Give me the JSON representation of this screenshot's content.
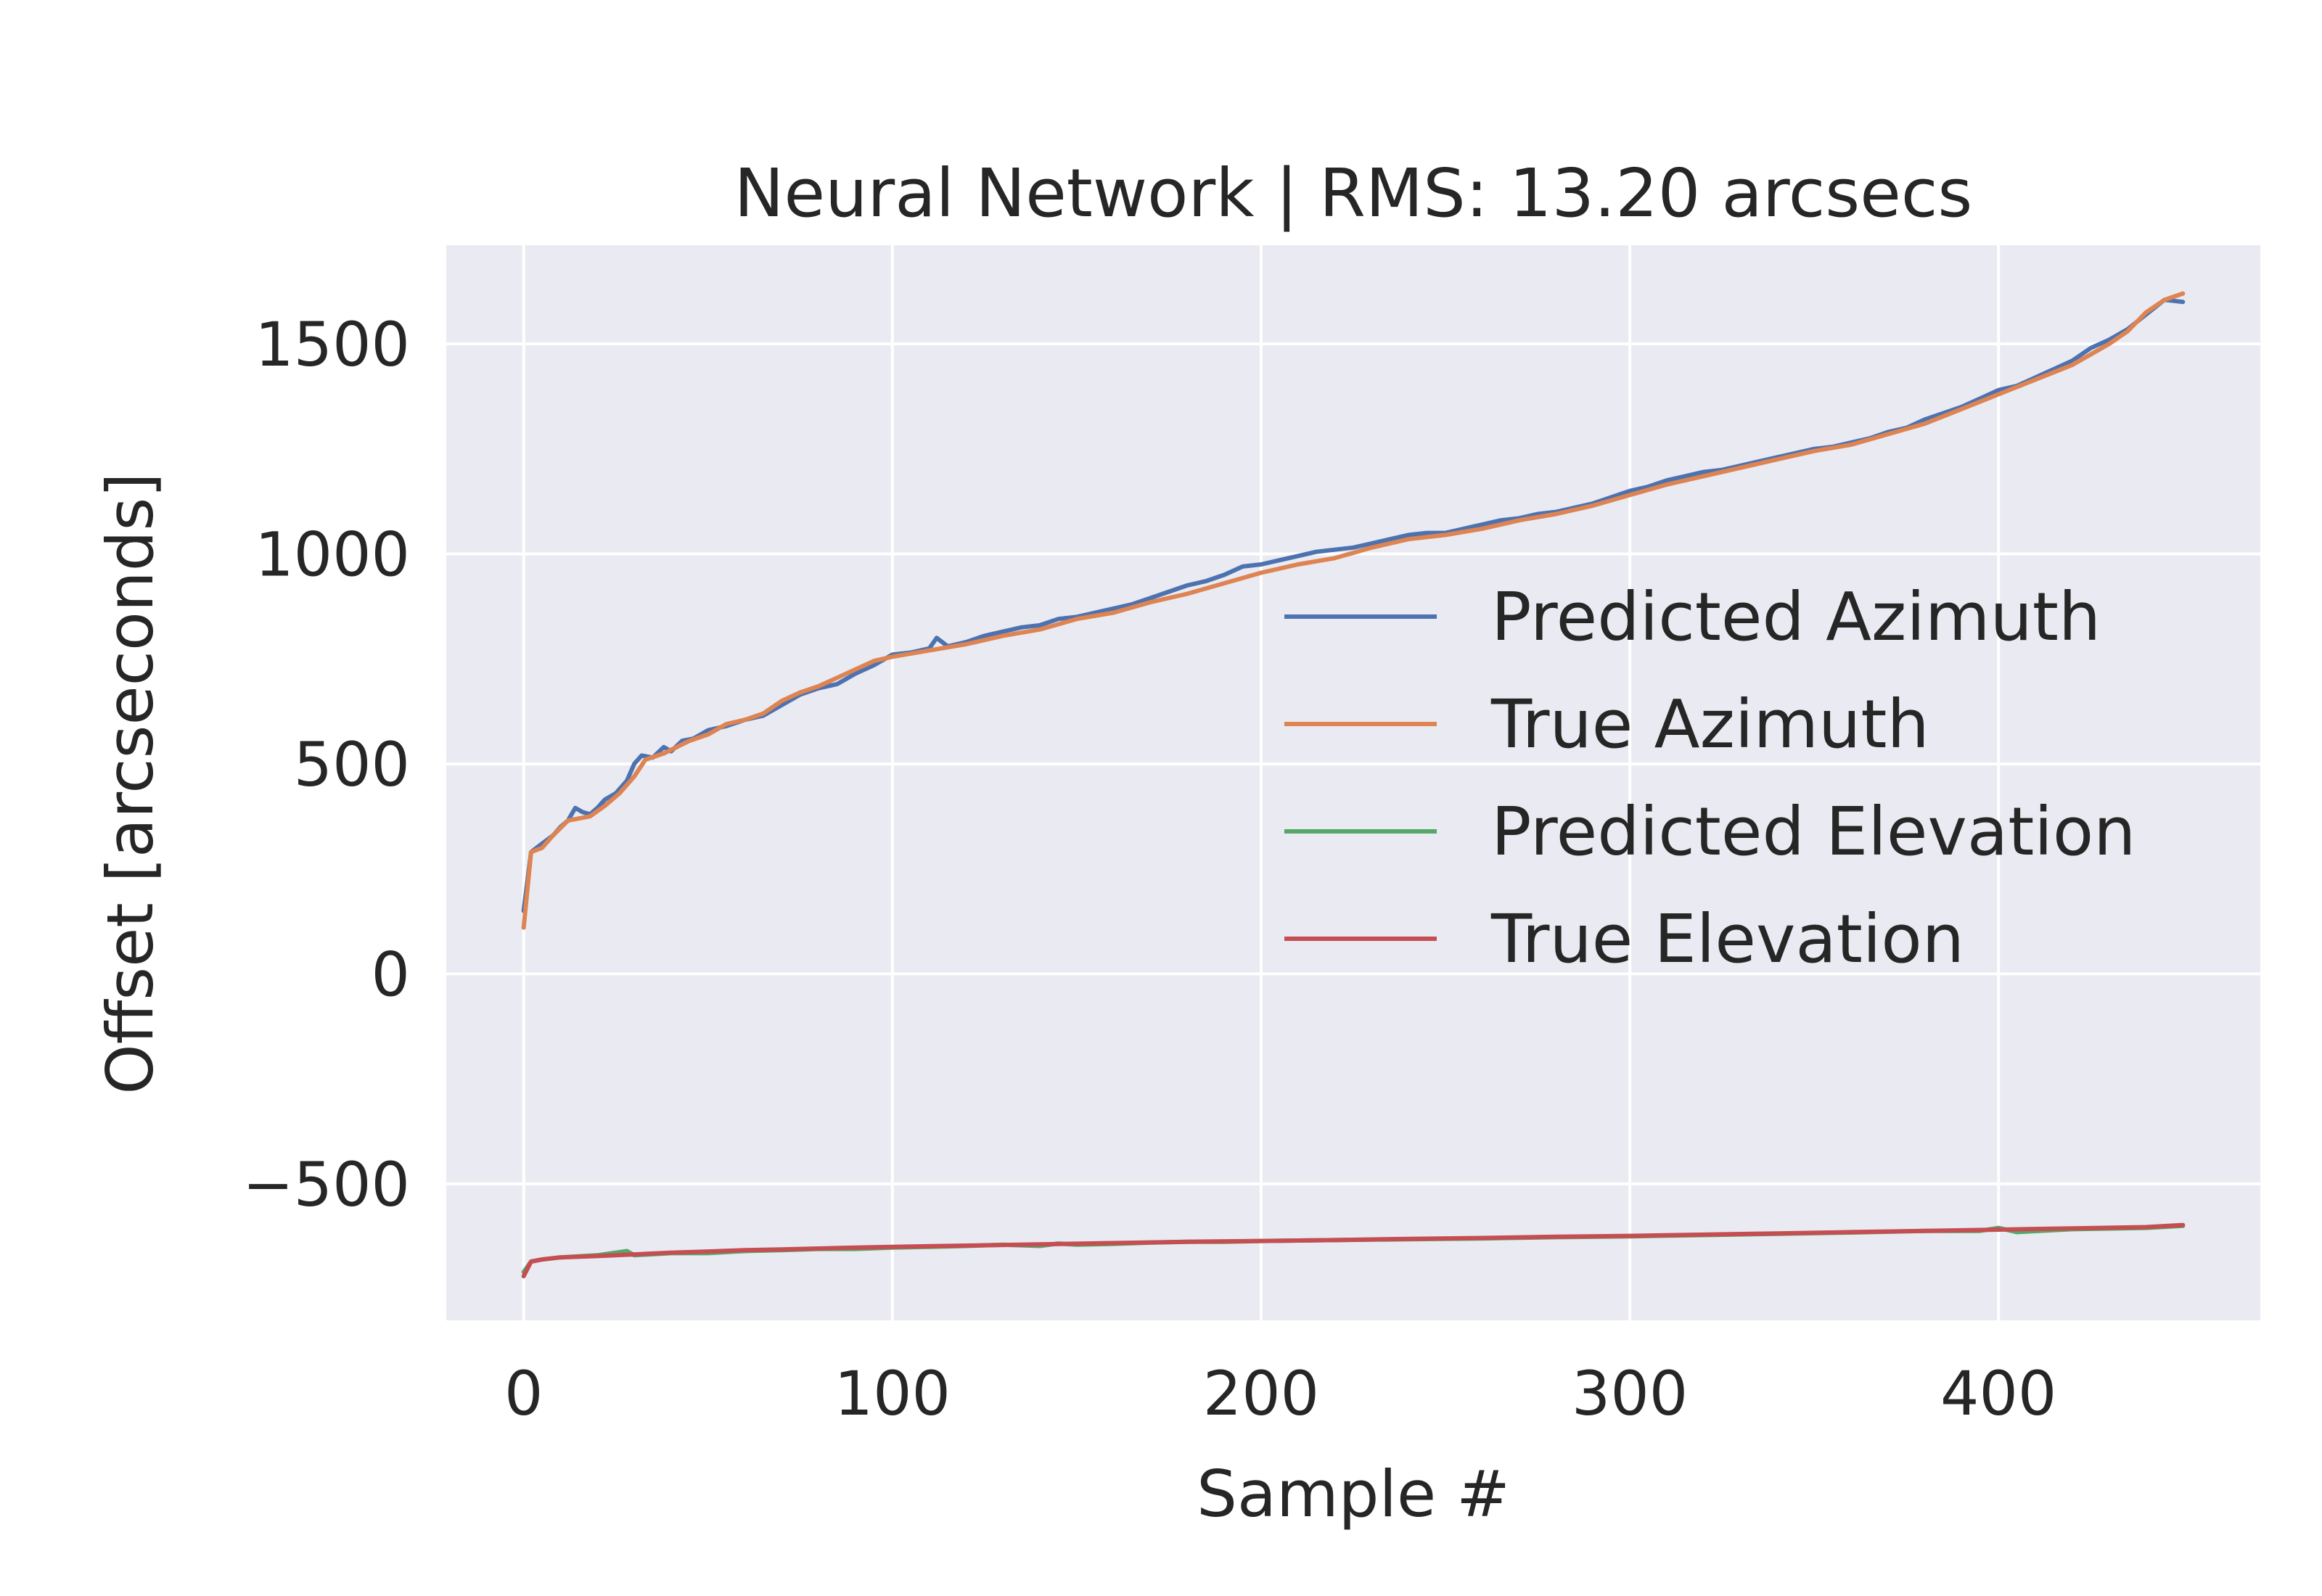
{
  "chart_data": {
    "type": "line",
    "title": "Neural Network | RMS: 13.20 arcsecs",
    "xlabel": "Sample #",
    "ylabel": "Offset [arcseconds]",
    "xlim": [
      -21,
      471
    ],
    "ylim": [
      -825,
      1735
    ],
    "xticks": [
      0,
      100,
      200,
      300,
      400
    ],
    "xtick_labels": [
      "0",
      "100",
      "200",
      "300",
      "400"
    ],
    "yticks": [
      -500,
      0,
      500,
      1000,
      1500
    ],
    "ytick_labels": [
      "−500",
      "0",
      "500",
      "1000",
      "1500"
    ],
    "grid": true,
    "legend_position": "center-right",
    "colors": {
      "background": "#EAEAF2",
      "grid": "#FFFFFF",
      "text": "#262626"
    },
    "series": [
      {
        "name": "Predicted Azimuth",
        "color": "#4C72B0",
        "points": [
          [
            0,
            150
          ],
          [
            2,
            290
          ],
          [
            5,
            310
          ],
          [
            8,
            330
          ],
          [
            10,
            350
          ],
          [
            12,
            365
          ],
          [
            14,
            395
          ],
          [
            16,
            385
          ],
          [
            18,
            380
          ],
          [
            20,
            395
          ],
          [
            22,
            415
          ],
          [
            25,
            430
          ],
          [
            28,
            460
          ],
          [
            30,
            500
          ],
          [
            32,
            520
          ],
          [
            35,
            515
          ],
          [
            38,
            540
          ],
          [
            40,
            530
          ],
          [
            43,
            555
          ],
          [
            46,
            560
          ],
          [
            50,
            580
          ],
          [
            55,
            590
          ],
          [
            60,
            605
          ],
          [
            65,
            615
          ],
          [
            70,
            640
          ],
          [
            75,
            665
          ],
          [
            80,
            680
          ],
          [
            85,
            690
          ],
          [
            90,
            715
          ],
          [
            95,
            735
          ],
          [
            100,
            760
          ],
          [
            105,
            765
          ],
          [
            110,
            775
          ],
          [
            112,
            800
          ],
          [
            115,
            780
          ],
          [
            120,
            790
          ],
          [
            125,
            805
          ],
          [
            130,
            815
          ],
          [
            135,
            825
          ],
          [
            140,
            830
          ],
          [
            145,
            845
          ],
          [
            150,
            850
          ],
          [
            155,
            860
          ],
          [
            160,
            870
          ],
          [
            165,
            880
          ],
          [
            170,
            895
          ],
          [
            175,
            910
          ],
          [
            180,
            925
          ],
          [
            185,
            935
          ],
          [
            190,
            950
          ],
          [
            195,
            970
          ],
          [
            200,
            975
          ],
          [
            205,
            985
          ],
          [
            210,
            995
          ],
          [
            215,
            1005
          ],
          [
            220,
            1010
          ],
          [
            225,
            1015
          ],
          [
            230,
            1025
          ],
          [
            235,
            1035
          ],
          [
            240,
            1045
          ],
          [
            245,
            1050
          ],
          [
            250,
            1050
          ],
          [
            255,
            1060
          ],
          [
            260,
            1070
          ],
          [
            265,
            1080
          ],
          [
            270,
            1085
          ],
          [
            275,
            1095
          ],
          [
            280,
            1100
          ],
          [
            285,
            1110
          ],
          [
            290,
            1120
          ],
          [
            295,
            1135
          ],
          [
            300,
            1150
          ],
          [
            305,
            1160
          ],
          [
            310,
            1175
          ],
          [
            315,
            1185
          ],
          [
            320,
            1195
          ],
          [
            325,
            1200
          ],
          [
            330,
            1210
          ],
          [
            335,
            1220
          ],
          [
            340,
            1230
          ],
          [
            345,
            1240
          ],
          [
            350,
            1250
          ],
          [
            355,
            1255
          ],
          [
            360,
            1265
          ],
          [
            365,
            1275
          ],
          [
            370,
            1290
          ],
          [
            375,
            1300
          ],
          [
            380,
            1320
          ],
          [
            385,
            1335
          ],
          [
            390,
            1350
          ],
          [
            395,
            1370
          ],
          [
            400,
            1390
          ],
          [
            405,
            1400
          ],
          [
            410,
            1420
          ],
          [
            415,
            1440
          ],
          [
            420,
            1460
          ],
          [
            425,
            1490
          ],
          [
            430,
            1510
          ],
          [
            435,
            1535
          ],
          [
            440,
            1570
          ],
          [
            445,
            1605
          ],
          [
            450,
            1600
          ]
        ]
      },
      {
        "name": "True Azimuth",
        "color": "#DD8452",
        "points": [
          [
            0,
            110
          ],
          [
            2,
            290
          ],
          [
            5,
            300
          ],
          [
            8,
            330
          ],
          [
            12,
            365
          ],
          [
            18,
            375
          ],
          [
            22,
            400
          ],
          [
            26,
            430
          ],
          [
            30,
            470
          ],
          [
            33,
            510
          ],
          [
            38,
            525
          ],
          [
            45,
            555
          ],
          [
            50,
            570
          ],
          [
            55,
            595
          ],
          [
            60,
            605
          ],
          [
            65,
            620
          ],
          [
            70,
            650
          ],
          [
            75,
            670
          ],
          [
            80,
            685
          ],
          [
            85,
            705
          ],
          [
            90,
            725
          ],
          [
            95,
            745
          ],
          [
            100,
            755
          ],
          [
            110,
            770
          ],
          [
            120,
            785
          ],
          [
            130,
            805
          ],
          [
            140,
            820
          ],
          [
            150,
            845
          ],
          [
            160,
            860
          ],
          [
            170,
            885
          ],
          [
            180,
            905
          ],
          [
            190,
            930
          ],
          [
            200,
            955
          ],
          [
            210,
            975
          ],
          [
            220,
            990
          ],
          [
            230,
            1015
          ],
          [
            240,
            1035
          ],
          [
            250,
            1045
          ],
          [
            260,
            1060
          ],
          [
            270,
            1080
          ],
          [
            280,
            1095
          ],
          [
            290,
            1115
          ],
          [
            300,
            1140
          ],
          [
            310,
            1165
          ],
          [
            320,
            1185
          ],
          [
            330,
            1205
          ],
          [
            340,
            1225
          ],
          [
            350,
            1245
          ],
          [
            360,
            1260
          ],
          [
            370,
            1285
          ],
          [
            380,
            1310
          ],
          [
            390,
            1345
          ],
          [
            400,
            1380
          ],
          [
            410,
            1415
          ],
          [
            420,
            1450
          ],
          [
            430,
            1500
          ],
          [
            435,
            1530
          ],
          [
            440,
            1575
          ],
          [
            445,
            1605
          ],
          [
            450,
            1620
          ]
        ]
      },
      {
        "name": "Predicted Elevation",
        "color": "#55A868",
        "points": [
          [
            0,
            -710
          ],
          [
            2,
            -685
          ],
          [
            5,
            -680
          ],
          [
            10,
            -675
          ],
          [
            20,
            -670
          ],
          [
            28,
            -660
          ],
          [
            30,
            -670
          ],
          [
            40,
            -665
          ],
          [
            50,
            -665
          ],
          [
            60,
            -660
          ],
          [
            70,
            -658
          ],
          [
            80,
            -655
          ],
          [
            90,
            -655
          ],
          [
            100,
            -652
          ],
          [
            110,
            -650
          ],
          [
            120,
            -648
          ],
          [
            130,
            -645
          ],
          [
            140,
            -648
          ],
          [
            145,
            -642
          ],
          [
            150,
            -645
          ],
          [
            160,
            -643
          ],
          [
            170,
            -640
          ],
          [
            180,
            -638
          ],
          [
            190,
            -638
          ],
          [
            200,
            -636
          ],
          [
            220,
            -634
          ],
          [
            240,
            -632
          ],
          [
            260,
            -630
          ],
          [
            280,
            -627
          ],
          [
            300,
            -625
          ],
          [
            320,
            -622
          ],
          [
            340,
            -619
          ],
          [
            360,
            -616
          ],
          [
            380,
            -612
          ],
          [
            395,
            -612
          ],
          [
            400,
            -605
          ],
          [
            405,
            -615
          ],
          [
            420,
            -608
          ],
          [
            440,
            -605
          ],
          [
            450,
            -600
          ]
        ]
      },
      {
        "name": "True Elevation",
        "color": "#C44E52",
        "points": [
          [
            0,
            -720
          ],
          [
            2,
            -685
          ],
          [
            5,
            -680
          ],
          [
            10,
            -675
          ],
          [
            20,
            -672
          ],
          [
            30,
            -668
          ],
          [
            40,
            -664
          ],
          [
            50,
            -661
          ],
          [
            60,
            -658
          ],
          [
            70,
            -656
          ],
          [
            80,
            -654
          ],
          [
            90,
            -652
          ],
          [
            100,
            -650
          ],
          [
            120,
            -647
          ],
          [
            140,
            -644
          ],
          [
            160,
            -641
          ],
          [
            180,
            -638
          ],
          [
            200,
            -636
          ],
          [
            220,
            -634
          ],
          [
            240,
            -631
          ],
          [
            260,
            -629
          ],
          [
            280,
            -626
          ],
          [
            300,
            -624
          ],
          [
            320,
            -621
          ],
          [
            340,
            -618
          ],
          [
            360,
            -615
          ],
          [
            380,
            -612
          ],
          [
            400,
            -609
          ],
          [
            420,
            -606
          ],
          [
            440,
            -603
          ],
          [
            450,
            -598
          ]
        ]
      }
    ]
  }
}
